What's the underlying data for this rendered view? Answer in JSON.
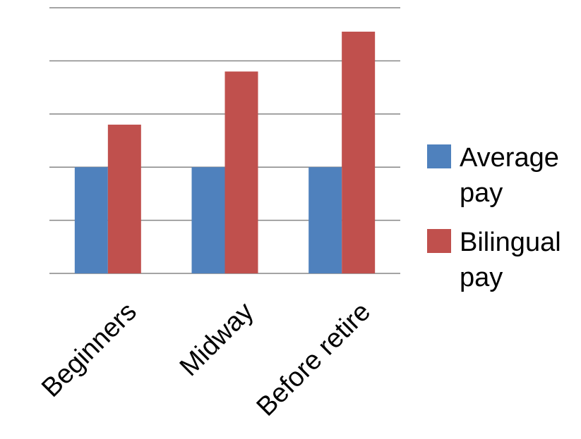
{
  "chart_data": {
    "type": "bar",
    "categories": [
      "Beginners",
      "Midway",
      "Before retire"
    ],
    "series": [
      {
        "name": "Average pay",
        "legend_lines": [
          "Average",
          "pay"
        ],
        "color": "#4F81BD",
        "values": [
          2,
          2,
          2
        ]
      },
      {
        "name": "Bilingual pay",
        "legend_lines": [
          "Bilingual",
          "pay"
        ],
        "color": "#C0504D",
        "values": [
          2.8,
          3.8,
          4.55
        ]
      }
    ],
    "ylim": [
      0,
      5
    ],
    "gridline_count": 5,
    "grid": true,
    "y_tick_labels_shown": false,
    "legend_position": "right",
    "gridline_color": "#868686"
  }
}
